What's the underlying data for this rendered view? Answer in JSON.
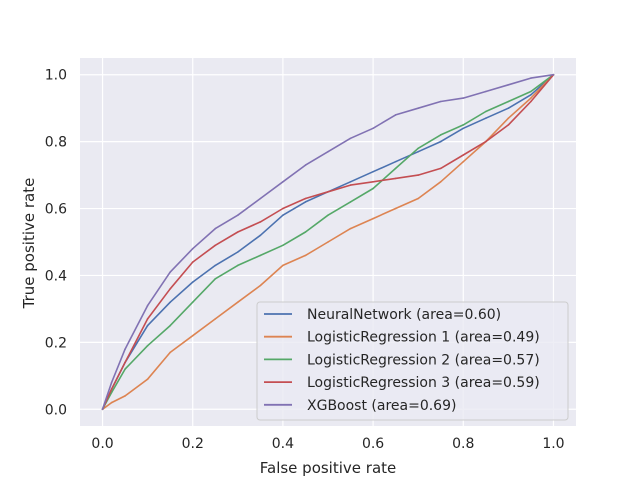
{
  "chart_data": {
    "type": "line",
    "title": "",
    "xlabel": "False positive rate",
    "ylabel": "True positive rate",
    "xlim": [
      -0.05,
      1.05
    ],
    "ylim": [
      -0.05,
      1.05
    ],
    "x_ticks": [
      "0.0",
      "0.2",
      "0.4",
      "0.6",
      "0.8",
      "1.0"
    ],
    "y_ticks": [
      "0.0",
      "0.2",
      "0.4",
      "0.6",
      "0.8",
      "1.0"
    ],
    "grid": true,
    "legend_position": "lower-right",
    "series": [
      {
        "name": "NeuralNetwork (area=0.60)",
        "color": "#4c72b0",
        "x": [
          0,
          0.02,
          0.05,
          0.1,
          0.15,
          0.2,
          0.25,
          0.3,
          0.35,
          0.4,
          0.45,
          0.5,
          0.55,
          0.6,
          0.65,
          0.7,
          0.75,
          0.8,
          0.85,
          0.9,
          0.95,
          1.0
        ],
        "y": [
          0,
          0.06,
          0.14,
          0.25,
          0.32,
          0.38,
          0.43,
          0.47,
          0.52,
          0.58,
          0.62,
          0.65,
          0.68,
          0.71,
          0.74,
          0.77,
          0.8,
          0.84,
          0.87,
          0.9,
          0.94,
          1.0
        ]
      },
      {
        "name": "LogisticRegression 1 (area=0.49)",
        "color": "#dd8452",
        "x": [
          0,
          0.02,
          0.05,
          0.1,
          0.15,
          0.2,
          0.25,
          0.3,
          0.35,
          0.4,
          0.45,
          0.5,
          0.55,
          0.6,
          0.65,
          0.7,
          0.75,
          0.8,
          0.85,
          0.9,
          0.95,
          1.0
        ],
        "y": [
          0,
          0.02,
          0.04,
          0.09,
          0.17,
          0.22,
          0.27,
          0.32,
          0.37,
          0.43,
          0.46,
          0.5,
          0.54,
          0.57,
          0.6,
          0.63,
          0.68,
          0.74,
          0.8,
          0.87,
          0.93,
          1.0
        ]
      },
      {
        "name": "LogisticRegression 2 (area=0.57)",
        "color": "#55a868",
        "x": [
          0,
          0.02,
          0.05,
          0.1,
          0.15,
          0.2,
          0.25,
          0.3,
          0.35,
          0.4,
          0.45,
          0.5,
          0.55,
          0.6,
          0.65,
          0.7,
          0.75,
          0.8,
          0.85,
          0.9,
          0.95,
          1.0
        ],
        "y": [
          0,
          0.05,
          0.12,
          0.19,
          0.25,
          0.32,
          0.39,
          0.43,
          0.46,
          0.49,
          0.53,
          0.58,
          0.62,
          0.66,
          0.72,
          0.78,
          0.82,
          0.85,
          0.89,
          0.92,
          0.95,
          1.0
        ]
      },
      {
        "name": "LogisticRegression 3 (area=0.59)",
        "color": "#c44e52",
        "x": [
          0,
          0.02,
          0.05,
          0.1,
          0.15,
          0.2,
          0.25,
          0.3,
          0.35,
          0.4,
          0.45,
          0.5,
          0.55,
          0.6,
          0.65,
          0.7,
          0.75,
          0.8,
          0.85,
          0.9,
          0.95,
          1.0
        ],
        "y": [
          0,
          0.06,
          0.14,
          0.27,
          0.36,
          0.44,
          0.49,
          0.53,
          0.56,
          0.6,
          0.63,
          0.65,
          0.67,
          0.68,
          0.69,
          0.7,
          0.72,
          0.76,
          0.8,
          0.85,
          0.92,
          1.0
        ]
      },
      {
        "name": "XGBoost (area=0.69)",
        "color": "#8172b3",
        "x": [
          0,
          0.02,
          0.05,
          0.1,
          0.15,
          0.2,
          0.25,
          0.3,
          0.35,
          0.4,
          0.45,
          0.5,
          0.55,
          0.6,
          0.65,
          0.7,
          0.75,
          0.8,
          0.85,
          0.9,
          0.95,
          1.0
        ],
        "y": [
          0,
          0.08,
          0.18,
          0.31,
          0.41,
          0.48,
          0.54,
          0.58,
          0.63,
          0.68,
          0.73,
          0.77,
          0.81,
          0.84,
          0.88,
          0.9,
          0.92,
          0.93,
          0.95,
          0.97,
          0.99,
          1.0
        ]
      }
    ]
  }
}
